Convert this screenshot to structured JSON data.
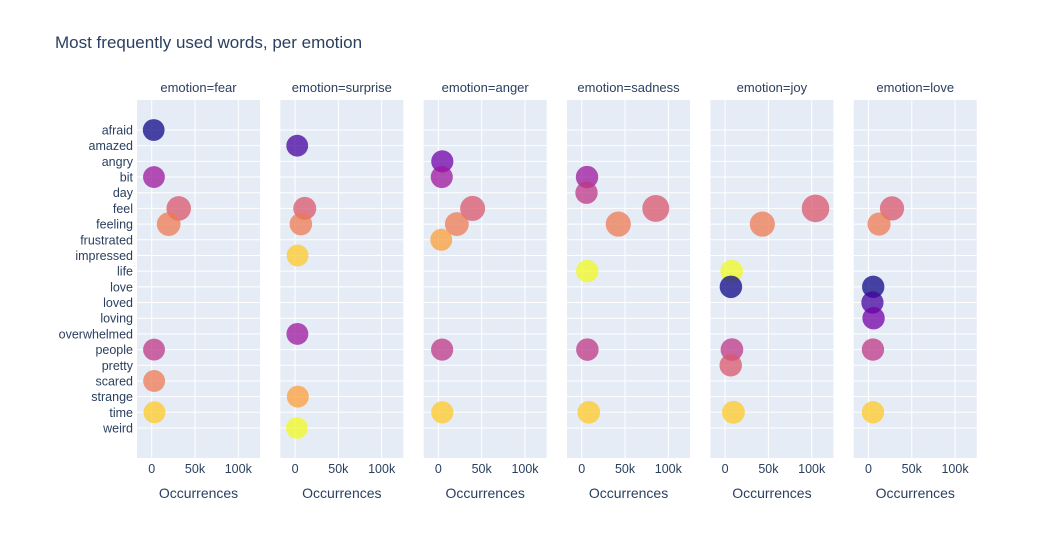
{
  "title": "Most frequently used words, per emotion",
  "chart_data": {
    "type": "scatter",
    "title": "Most frequently used words, per emotion",
    "facet_field": "emotion",
    "xlabel": "Occurrences",
    "x_ticks": [
      {
        "value": 0,
        "label": "0"
      },
      {
        "value": 50000,
        "label": "50k"
      },
      {
        "value": 100000,
        "label": "100k"
      }
    ],
    "x_axis_range": [
      -17000,
      125000
    ],
    "grid": true,
    "legend_position": "none",
    "size_field": "occurrences",
    "color_field": "word",
    "y_categories": [
      "afraid",
      "amazed",
      "angry",
      "bit",
      "day",
      "feel",
      "feeling",
      "frustrated",
      "impressed",
      "life",
      "love",
      "loved",
      "loving",
      "overwhelmed",
      "people",
      "pretty",
      "scared",
      "strange",
      "time",
      "weird"
    ],
    "colors": {
      "text": "#2a3f5f",
      "panel_bg": "#e5ecf6",
      "gridline": "#ffffff",
      "marker_opacity": 0.75,
      "palette": [
        "#0d0887",
        "#46039f",
        "#7201a8",
        "#9c179e",
        "#bd3786",
        "#d8576b",
        "#ed7953",
        "#fb9f3a",
        "#fdca26",
        "#f0f921"
      ]
    },
    "facets": [
      {
        "emotion": "fear",
        "title": "emotion=fear",
        "points": [
          {
            "word": "afraid",
            "occurrences": 2300
          },
          {
            "word": "bit",
            "occurrences": 2600
          },
          {
            "word": "feel",
            "occurrences": 31200
          },
          {
            "word": "feeling",
            "occurrences": 19600
          },
          {
            "word": "people",
            "occurrences": 2700
          },
          {
            "word": "scared",
            "occurrences": 2800
          },
          {
            "word": "time",
            "occurrences": 3200
          }
        ]
      },
      {
        "emotion": "surprise",
        "title": "emotion=surprise",
        "points": [
          {
            "word": "amazed",
            "occurrences": 2500
          },
          {
            "word": "feel",
            "occurrences": 11200
          },
          {
            "word": "feeling",
            "occurrences": 6700
          },
          {
            "word": "impressed",
            "occurrences": 2900
          },
          {
            "word": "overwhelmed",
            "occurrences": 2700
          },
          {
            "word": "strange",
            "occurrences": 3200
          },
          {
            "word": "weird",
            "occurrences": 2100
          }
        ]
      },
      {
        "emotion": "anger",
        "title": "emotion=anger",
        "points": [
          {
            "word": "angry",
            "occurrences": 4500
          },
          {
            "word": "bit",
            "occurrences": 3900
          },
          {
            "word": "feel",
            "occurrences": 39500
          },
          {
            "word": "feeling",
            "occurrences": 21300
          },
          {
            "word": "frustrated",
            "occurrences": 3300
          },
          {
            "word": "people",
            "occurrences": 4300
          },
          {
            "word": "time",
            "occurrences": 4500
          }
        ]
      },
      {
        "emotion": "sadness",
        "title": "emotion=sadness",
        "points": [
          {
            "word": "bit",
            "occurrences": 6100
          },
          {
            "word": "day",
            "occurrences": 5500
          },
          {
            "word": "feel",
            "occurrences": 85500
          },
          {
            "word": "feeling",
            "occurrences": 42200
          },
          {
            "word": "life",
            "occurrences": 6300
          },
          {
            "word": "people",
            "occurrences": 6500
          },
          {
            "word": "time",
            "occurrences": 8100
          }
        ]
      },
      {
        "emotion": "joy",
        "title": "emotion=joy",
        "points": [
          {
            "word": "feel",
            "occurrences": 104400
          },
          {
            "word": "feeling",
            "occurrences": 43000
          },
          {
            "word": "life",
            "occurrences": 7600
          },
          {
            "word": "love",
            "occurrences": 6700
          },
          {
            "word": "people",
            "occurrences": 7900
          },
          {
            "word": "pretty",
            "occurrences": 6500
          },
          {
            "word": "time",
            "occurrences": 9600
          }
        ]
      },
      {
        "emotion": "love",
        "title": "emotion=love",
        "points": [
          {
            "word": "feel",
            "occurrences": 27200
          },
          {
            "word": "feeling",
            "occurrences": 12200
          },
          {
            "word": "love",
            "occurrences": 5500
          },
          {
            "word": "loved",
            "occurrences": 4600
          },
          {
            "word": "loving",
            "occurrences": 5900
          },
          {
            "word": "people",
            "occurrences": 5200
          },
          {
            "word": "time",
            "occurrences": 5200
          }
        ]
      }
    ]
  }
}
